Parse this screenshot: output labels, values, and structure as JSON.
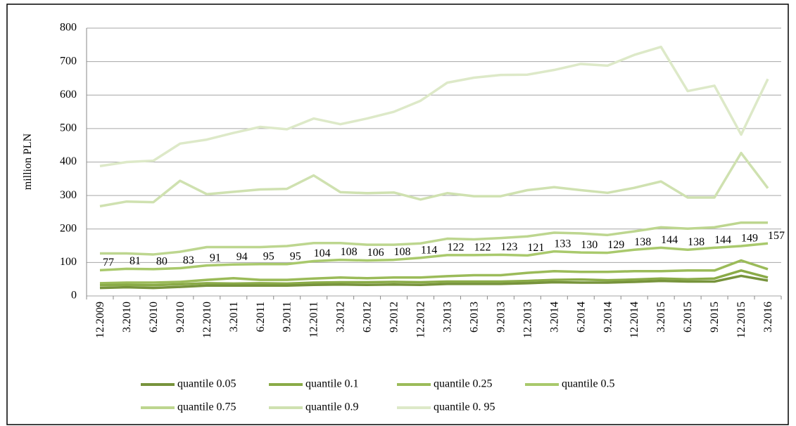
{
  "chart_data": {
    "type": "line",
    "y_label": "million PLN",
    "categories": [
      "12.2009",
      "3.2010",
      "6.2010",
      "9.2010",
      "12.2010",
      "3.2011",
      "6.2011",
      "9.2011",
      "12.2011",
      "3.2012",
      "6.2012",
      "9.2012",
      "12.2012",
      "3.2013",
      "6.2013",
      "9.2013",
      "12.2013",
      "3.2014",
      "6.2014",
      "9.2014",
      "12.2014",
      "3.2015",
      "6.2015",
      "9.2015",
      "12.2015",
      "3.2016"
    ],
    "ylim": [
      0,
      800
    ],
    "yticks": [
      0,
      100,
      200,
      300,
      400,
      500,
      600,
      700,
      800
    ],
    "grid": true,
    "legend": "bottom",
    "series": [
      {
        "name": "quantile 0.05",
        "color": "#77933c",
        "values": [
          24,
          26,
          24,
          27,
          31,
          31,
          31,
          31,
          33,
          34,
          33,
          34,
          33,
          36,
          36,
          36,
          38,
          41,
          40,
          40,
          42,
          45,
          43,
          43,
          60,
          46
        ]
      },
      {
        "name": "quantile 0.1",
        "color": "#8aab47",
        "values": [
          32,
          33,
          32,
          35,
          38,
          37,
          38,
          37,
          40,
          41,
          41,
          42,
          41,
          43,
          43,
          43,
          45,
          48,
          49,
          47,
          49,
          52,
          50,
          52,
          76,
          55
        ]
      },
      {
        "name": "quantile 0.25",
        "color": "#9bbb59",
        "values": [
          38,
          40,
          40,
          42,
          48,
          53,
          48,
          48,
          52,
          55,
          53,
          55,
          55,
          59,
          62,
          62,
          69,
          74,
          72,
          72,
          74,
          74,
          76,
          76,
          106,
          80
        ]
      },
      {
        "name": "quantile 0.5",
        "color": "#a9c96c",
        "show_labels": true,
        "values": [
          77,
          81,
          80,
          83,
          91,
          94,
          95,
          95,
          104,
          108,
          106,
          108,
          114,
          122,
          122,
          123,
          121,
          133,
          130,
          129,
          138,
          144,
          138,
          144,
          149,
          157
        ]
      },
      {
        "name": "quantile 0.75",
        "color": "#bdd68f",
        "values": [
          127,
          127,
          124,
          132,
          146,
          146,
          146,
          149,
          158,
          158,
          153,
          153,
          157,
          171,
          169,
          173,
          178,
          189,
          187,
          182,
          193,
          205,
          201,
          205,
          219,
          219
        ]
      },
      {
        "name": "quantile 0.9",
        "color": "#cfe1b0",
        "values": [
          268,
          282,
          280,
          344,
          304,
          311,
          318,
          320,
          360,
          310,
          307,
          309,
          288,
          307,
          298,
          298,
          316,
          325,
          316,
          308,
          323,
          342,
          294,
          294,
          427,
          322
        ]
      },
      {
        "name": "quantile 0. 95",
        "color": "#dde9c8",
        "values": [
          388,
          400,
          404,
          455,
          467,
          487,
          505,
          498,
          530,
          513,
          530,
          550,
          583,
          637,
          652,
          660,
          661,
          675,
          693,
          688,
          720,
          744,
          612,
          628,
          482,
          648
        ]
      }
    ]
  }
}
